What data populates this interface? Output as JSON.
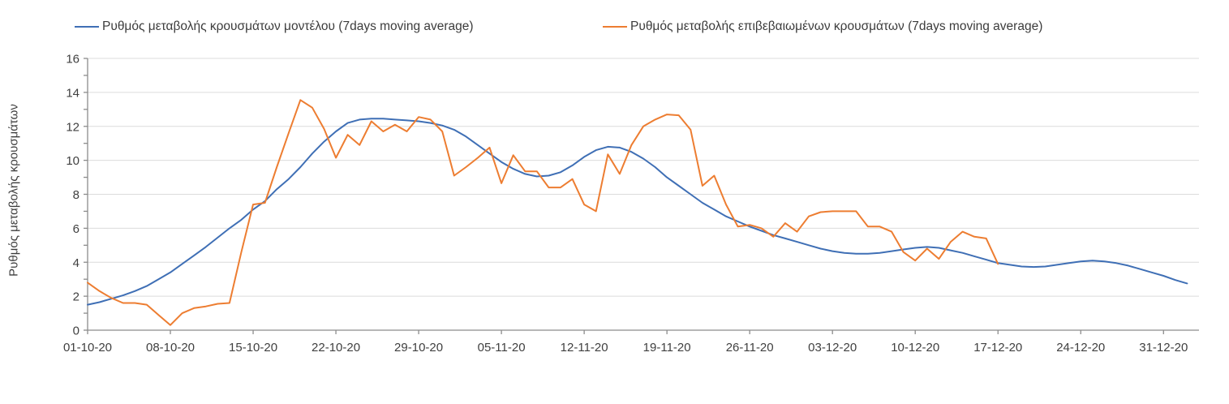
{
  "chart_data": {
    "type": "line",
    "title": "",
    "xlabel": "",
    "ylabel": "Ρυθμός μεταβολής κρουσμάτων",
    "ylim": [
      0,
      16
    ],
    "ytick_step": 2,
    "ytick_minor_step": 1,
    "grid": "horizontal",
    "legend_position": "top",
    "x_unit": "days since 01-10-20",
    "x_range_days": [
      0,
      94
    ],
    "x_tick_days": [
      0,
      7,
      14,
      21,
      28,
      35,
      42,
      49,
      56,
      63,
      70,
      77,
      84,
      91
    ],
    "x_tick_labels": [
      "01-10-20",
      "08-10-20",
      "15-10-20",
      "22-10-20",
      "29-10-20",
      "05-11-20",
      "12-11-20",
      "19-11-20",
      "26-11-20",
      "03-12-20",
      "10-12-20",
      "17-12-20",
      "24-12-20",
      "31-12-20"
    ],
    "axis_color": "#8c8c8c",
    "gridline_color": "#dcdcdc",
    "series": [
      {
        "name": "Ρυθμός μεταβολής κρουσμάτων μοντέλου (7days moving average)",
        "color": "#3f6fb5",
        "start_day": 0,
        "values": [
          1.5,
          1.65,
          1.85,
          2.05,
          2.3,
          2.6,
          3.0,
          3.4,
          3.9,
          4.4,
          4.9,
          5.45,
          6.0,
          6.5,
          7.1,
          7.6,
          8.3,
          8.9,
          9.6,
          10.4,
          11.1,
          11.7,
          12.2,
          12.4,
          12.45,
          12.45,
          12.4,
          12.35,
          12.3,
          12.2,
          12.05,
          11.8,
          11.4,
          10.9,
          10.4,
          9.9,
          9.5,
          9.2,
          9.05,
          9.1,
          9.3,
          9.7,
          10.2,
          10.6,
          10.8,
          10.75,
          10.5,
          10.1,
          9.6,
          9.0,
          8.5,
          8.0,
          7.5,
          7.1,
          6.7,
          6.4,
          6.1,
          5.85,
          5.6,
          5.4,
          5.2,
          5.0,
          4.8,
          4.65,
          4.55,
          4.5,
          4.5,
          4.55,
          4.65,
          4.75,
          4.85,
          4.9,
          4.85,
          4.7,
          4.55,
          4.35,
          4.15,
          3.95,
          3.85,
          3.75,
          3.72,
          3.75,
          3.85,
          3.95,
          4.05,
          4.1,
          4.05,
          3.95,
          3.8,
          3.6,
          3.4,
          3.2,
          2.95,
          2.75
        ]
      },
      {
        "name": "Ρυθμός μεταβολής επιβεβαιωμένων κρουσμάτων (7days moving average)",
        "color": "#ed7d31",
        "start_day": 0,
        "values": [
          2.8,
          2.3,
          1.9,
          1.6,
          1.6,
          1.5,
          0.9,
          0.3,
          1.0,
          1.3,
          1.4,
          1.55,
          1.6,
          4.6,
          7.4,
          7.5,
          9.6,
          11.6,
          13.55,
          13.1,
          11.85,
          10.15,
          11.5,
          10.9,
          12.3,
          11.7,
          12.1,
          11.7,
          12.55,
          12.4,
          11.7,
          9.1,
          9.6,
          10.15,
          10.75,
          8.65,
          10.3,
          9.35,
          9.35,
          8.4,
          8.4,
          8.9,
          7.4,
          7.0,
          10.35,
          9.2,
          10.9,
          12.0,
          12.4,
          12.7,
          12.65,
          11.8,
          8.5,
          9.1,
          7.4,
          6.1,
          6.2,
          6.0,
          5.5,
          6.3,
          5.8,
          6.7,
          6.95,
          7.0,
          7.0,
          7.0,
          6.1,
          6.1,
          5.8,
          4.6,
          4.1,
          4.8,
          4.2,
          5.2,
          5.8,
          5.5,
          5.4,
          3.9
        ]
      }
    ]
  }
}
